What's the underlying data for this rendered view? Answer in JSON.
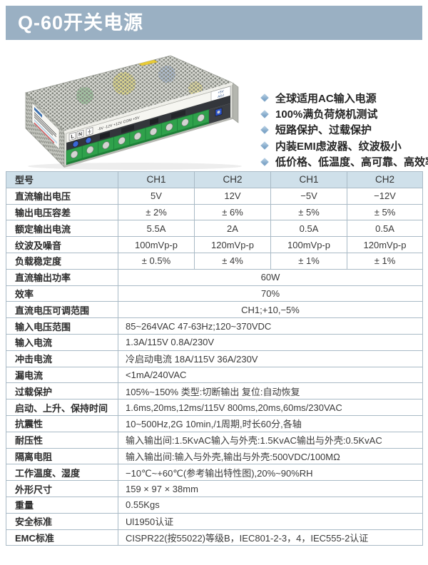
{
  "page": {
    "title": "Q-60开关电源"
  },
  "features": [
    "全球适用AC输入电源",
    "100%满负荷烧机测试",
    "短路保护、过载保护",
    "内装EMI虑波器、纹波极小",
    "低价格、低温度、高可靠、高效率"
  ],
  "product_image": {
    "terminal_labels": [
      "L",
      "N"
    ],
    "panel_text": "-5V -12V +12V COM +5V",
    "adj_label_line1": "+5V",
    "adj_label_line2": "ADJ"
  },
  "table": {
    "header": {
      "label": "型号",
      "cols": [
        "CH1",
        "CH2",
        "CH1",
        "CH2"
      ]
    },
    "rows": [
      {
        "label": "直流输出电压",
        "values": [
          "5V",
          "12V",
          "−5V",
          "−12V"
        ]
      },
      {
        "label": "输出电压容差",
        "values": [
          "± 2%",
          "± 6%",
          "± 5%",
          "± 5%"
        ]
      },
      {
        "label": "额定输出电流",
        "values": [
          "5.5A",
          "2A",
          "0.5A",
          "0.5A"
        ]
      },
      {
        "label": "纹波及噪音",
        "values": [
          "100mVp-p",
          "120mVp-p",
          "100mVp-p",
          "120mVp-p"
        ]
      },
      {
        "label": "负载稳定度",
        "values": [
          "± 0.5%",
          "± 4%",
          "± 1%",
          "± 1%"
        ]
      },
      {
        "label": "直流输出功率",
        "span": "60W",
        "align": "center"
      },
      {
        "label": "效率",
        "span": "70%",
        "align": "center"
      },
      {
        "label": "直流电压可调范围",
        "span": "CH1;+10,−5%",
        "align": "center"
      },
      {
        "label": "输入电压范围",
        "span": "85~264VAC 47-63Hz;120~370VDC",
        "align": "left"
      },
      {
        "label": "输入电流",
        "span": "1.3A/115V 0.8A/230V",
        "align": "left"
      },
      {
        "label": "冲击电流",
        "span": "冷启动电流 18A/115V 36A/230V",
        "align": "left"
      },
      {
        "label": "漏电流",
        "span": "<1mA/240VAC",
        "align": "left"
      },
      {
        "label": "过载保护",
        "span": "105%~150% 类型:切断输出  复位:自动恢复",
        "align": "left"
      },
      {
        "label": "启动、上升、保持时间",
        "span": "1.6ms,20ms,12ms/115V 800ms,20ms,60ms/230VAC",
        "align": "left"
      },
      {
        "label": "抗震性",
        "span": "10~500Hz,2G 10min,/1周期,时长60分,各轴",
        "align": "left"
      },
      {
        "label": "耐压性",
        "span": "输入输出间:1.5KvAC输入与外壳:1.5KvAC输出与外壳:0.5KvAC",
        "align": "left"
      },
      {
        "label": "隔离电阻",
        "span": "输入输出间:输入与外壳,输出与外壳:500VDC/100MΩ",
        "align": "left"
      },
      {
        "label": "工作温度、湿度",
        "span": "−10℃~+60℃(参考输出特性图),20%~90%RH",
        "align": "left"
      },
      {
        "label": "外形尺寸",
        "span": "159 × 97 × 38mm",
        "align": "left"
      },
      {
        "label": "重量",
        "span": "0.55Kgs",
        "align": "left"
      },
      {
        "label": "安全标准",
        "span": "Ul1950认证",
        "align": "left"
      },
      {
        "label": "EMC标准",
        "span": "CISPR22(按55022)等级B，IEC801-2-3，4，IEC555-2认证",
        "align": "left"
      }
    ]
  },
  "colors": {
    "banner_bg": "#9ab0c3",
    "header_row_bg": "#cfe0ea",
    "table_border": "#a9bac6",
    "diamond": "#7fa6c8"
  }
}
